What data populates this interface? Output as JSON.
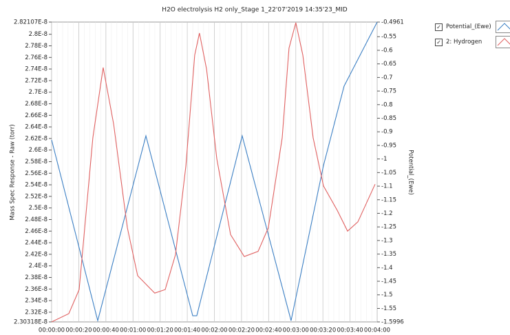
{
  "chart_data": {
    "type": "line",
    "title": "H2O electrolysis H2 only_Stage 1_22'07'2019 14:35'23_MID",
    "y_label": "Mass Spec Response - Raw (torr)",
    "y2_label": "Potential_(Ewe)",
    "grid": "x",
    "xlim": [
      0,
      240
    ],
    "xticks": [
      {
        "value": 0,
        "label": "00:00:00"
      },
      {
        "value": 20,
        "label": "00:00:20"
      },
      {
        "value": 40,
        "label": "00:00:40"
      },
      {
        "value": 60,
        "label": "00:01:00"
      },
      {
        "value": 80,
        "label": "00:01:20"
      },
      {
        "value": 100,
        "label": "00:01:40"
      },
      {
        "value": 120,
        "label": "00:02:00"
      },
      {
        "value": 140,
        "label": "00:02:20"
      },
      {
        "value": 160,
        "label": "00:02:40"
      },
      {
        "value": 180,
        "label": "00:03:00"
      },
      {
        "value": 200,
        "label": "00:03:20"
      },
      {
        "value": 220,
        "label": "00:03:40"
      },
      {
        "value": 240,
        "label": "00:04:00"
      }
    ],
    "ylim": [
      2.30318e-08,
      2.82107e-08
    ],
    "yticks": [
      {
        "value": 2.30318e-08,
        "label": "2.30318E-8"
      },
      {
        "value": 2.32e-08,
        "label": "2.32E-8"
      },
      {
        "value": 2.34e-08,
        "label": "2.34E-8"
      },
      {
        "value": 2.36e-08,
        "label": "2.36E-8"
      },
      {
        "value": 2.38e-08,
        "label": "2.38E-8"
      },
      {
        "value": 2.4e-08,
        "label": "2.4E-8"
      },
      {
        "value": 2.42e-08,
        "label": "2.42E-8"
      },
      {
        "value": 2.44e-08,
        "label": "2.44E-8"
      },
      {
        "value": 2.46e-08,
        "label": "2.46E-8"
      },
      {
        "value": 2.48e-08,
        "label": "2.48E-8"
      },
      {
        "value": 2.5e-08,
        "label": "2.5E-8"
      },
      {
        "value": 2.52e-08,
        "label": "2.52E-8"
      },
      {
        "value": 2.54e-08,
        "label": "2.54E-8"
      },
      {
        "value": 2.56e-08,
        "label": "2.56E-8"
      },
      {
        "value": 2.58e-08,
        "label": "2.58E-8"
      },
      {
        "value": 2.6e-08,
        "label": "2.6E-8"
      },
      {
        "value": 2.62e-08,
        "label": "2.62E-8"
      },
      {
        "value": 2.64e-08,
        "label": "2.64E-8"
      },
      {
        "value": 2.66e-08,
        "label": "2.66E-8"
      },
      {
        "value": 2.68e-08,
        "label": "2.68E-8"
      },
      {
        "value": 2.7e-08,
        "label": "2.7E-8"
      },
      {
        "value": 2.72e-08,
        "label": "2.72E-8"
      },
      {
        "value": 2.74e-08,
        "label": "2.74E-8"
      },
      {
        "value": 2.76e-08,
        "label": "2.76E-8"
      },
      {
        "value": 2.78e-08,
        "label": "2.78E-8"
      },
      {
        "value": 2.8e-08,
        "label": "2.8E-8"
      },
      {
        "value": 2.82107e-08,
        "label": "2.82107E-8"
      }
    ],
    "y2lim": [
      -1.5996,
      -0.4961
    ],
    "y2ticks": [
      -1.5996,
      -1.55,
      -1.5,
      -1.45,
      -1.4,
      -1.35,
      -1.3,
      -1.25,
      -1.2,
      -1.15,
      -1.1,
      -1.05,
      -1,
      -0.95,
      -0.9,
      -0.85,
      -0.8,
      -0.75,
      -0.7,
      -0.65,
      -0.6,
      -0.55,
      -0.4961
    ],
    "series": [
      {
        "name": "Potential_(Ewe)",
        "color": "#3b7fc4",
        "axis": "y2",
        "x": [
          0,
          34,
          69.5,
          104,
          107,
          140.5,
          176.5,
          200.4,
          215.6,
          240
        ],
        "values": [
          -0.93,
          -1.595,
          -0.915,
          -1.577,
          -1.577,
          -0.915,
          -1.595,
          -1.024,
          -0.732,
          -0.4961
        ]
      },
      {
        "name": "2: Hydrogen",
        "color": "#e06060",
        "axis": "y",
        "x": [
          0,
          12.7,
          20.3,
          30.4,
          38,
          45.7,
          55.8,
          63.4,
          76,
          83.7,
          91.3,
          99,
          105.5,
          109,
          114.2,
          121.8,
          131.9,
          142,
          152.2,
          159.8,
          170,
          175,
          180,
          185.2,
          192.8,
          200.4,
          210.5,
          218.2,
          225.8,
          238.5
        ],
        "values": [
          2.30318e-08,
          2.3175e-08,
          2.359e-08,
          2.621e-08,
          2.7425e-08,
          2.645e-08,
          2.466e-08,
          2.383e-08,
          2.353e-08,
          2.359e-08,
          2.419e-08,
          2.573e-08,
          2.764e-08,
          2.802e-08,
          2.74e-08,
          2.585e-08,
          2.454e-08,
          2.416e-08,
          2.425e-08,
          2.466e-08,
          2.621e-08,
          2.776e-08,
          2.82e-08,
          2.764e-08,
          2.621e-08,
          2.538e-08,
          2.496e-08,
          2.46e-08,
          2.476e-08,
          2.541e-08
        ]
      }
    ]
  }
}
